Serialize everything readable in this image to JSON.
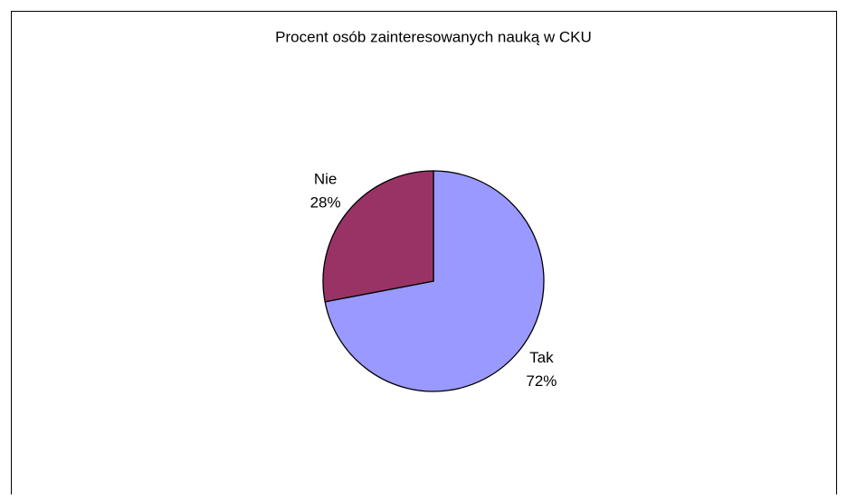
{
  "chart_data": {
    "type": "pie",
    "title": "Procent osób zainteresowanych nauką w CKU",
    "categories": [
      "Tak",
      "Nie"
    ],
    "values": [
      72,
      28
    ],
    "value_labels": [
      "72%",
      "28%"
    ],
    "colors": [
      "#9999ff",
      "#993366"
    ]
  }
}
